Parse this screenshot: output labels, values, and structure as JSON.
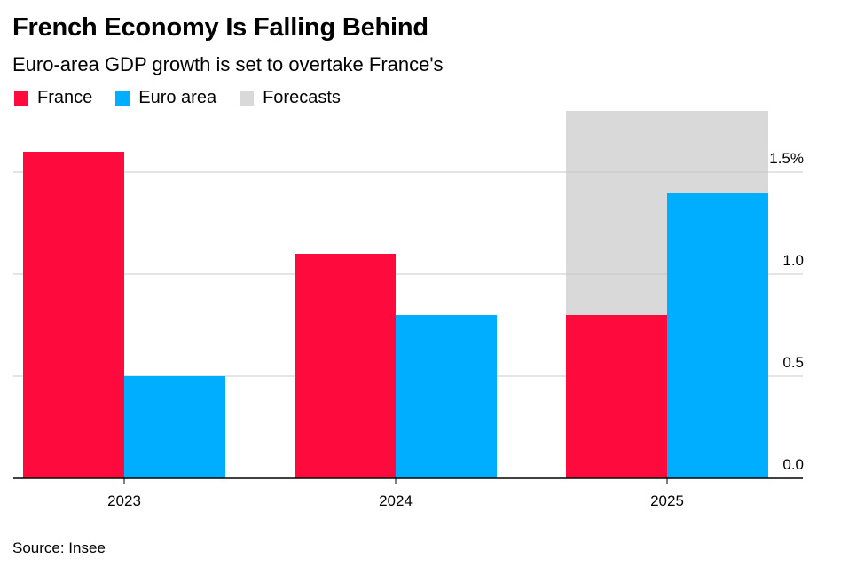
{
  "title": "French Economy Is Falling Behind",
  "subtitle": "Euro-area GDP growth is set to overtake France's",
  "source": "Source: Insee",
  "chart_data": {
    "type": "bar",
    "categories": [
      "2023",
      "2024",
      "2025"
    ],
    "series": [
      {
        "name": "France",
        "color": "#ff0a3c",
        "values": [
          1.6,
          1.1,
          0.8
        ]
      },
      {
        "name": "Euro area",
        "color": "#00aeff",
        "values": [
          0.5,
          0.8,
          1.4
        ]
      }
    ],
    "forecast": {
      "name": "Forecasts",
      "color": "#d9d9d9",
      "categories": [
        "2025"
      ]
    },
    "ylim": [
      0,
      1.8
    ],
    "yticks": [
      {
        "value": 0,
        "label": "0.0"
      },
      {
        "value": 0.5,
        "label": "0.5"
      },
      {
        "value": 1.0,
        "label": "1.0"
      },
      {
        "value": 1.5,
        "label": "1.5%"
      }
    ],
    "legend_position": "top-left",
    "grid": true,
    "y_axis_side": "right"
  }
}
